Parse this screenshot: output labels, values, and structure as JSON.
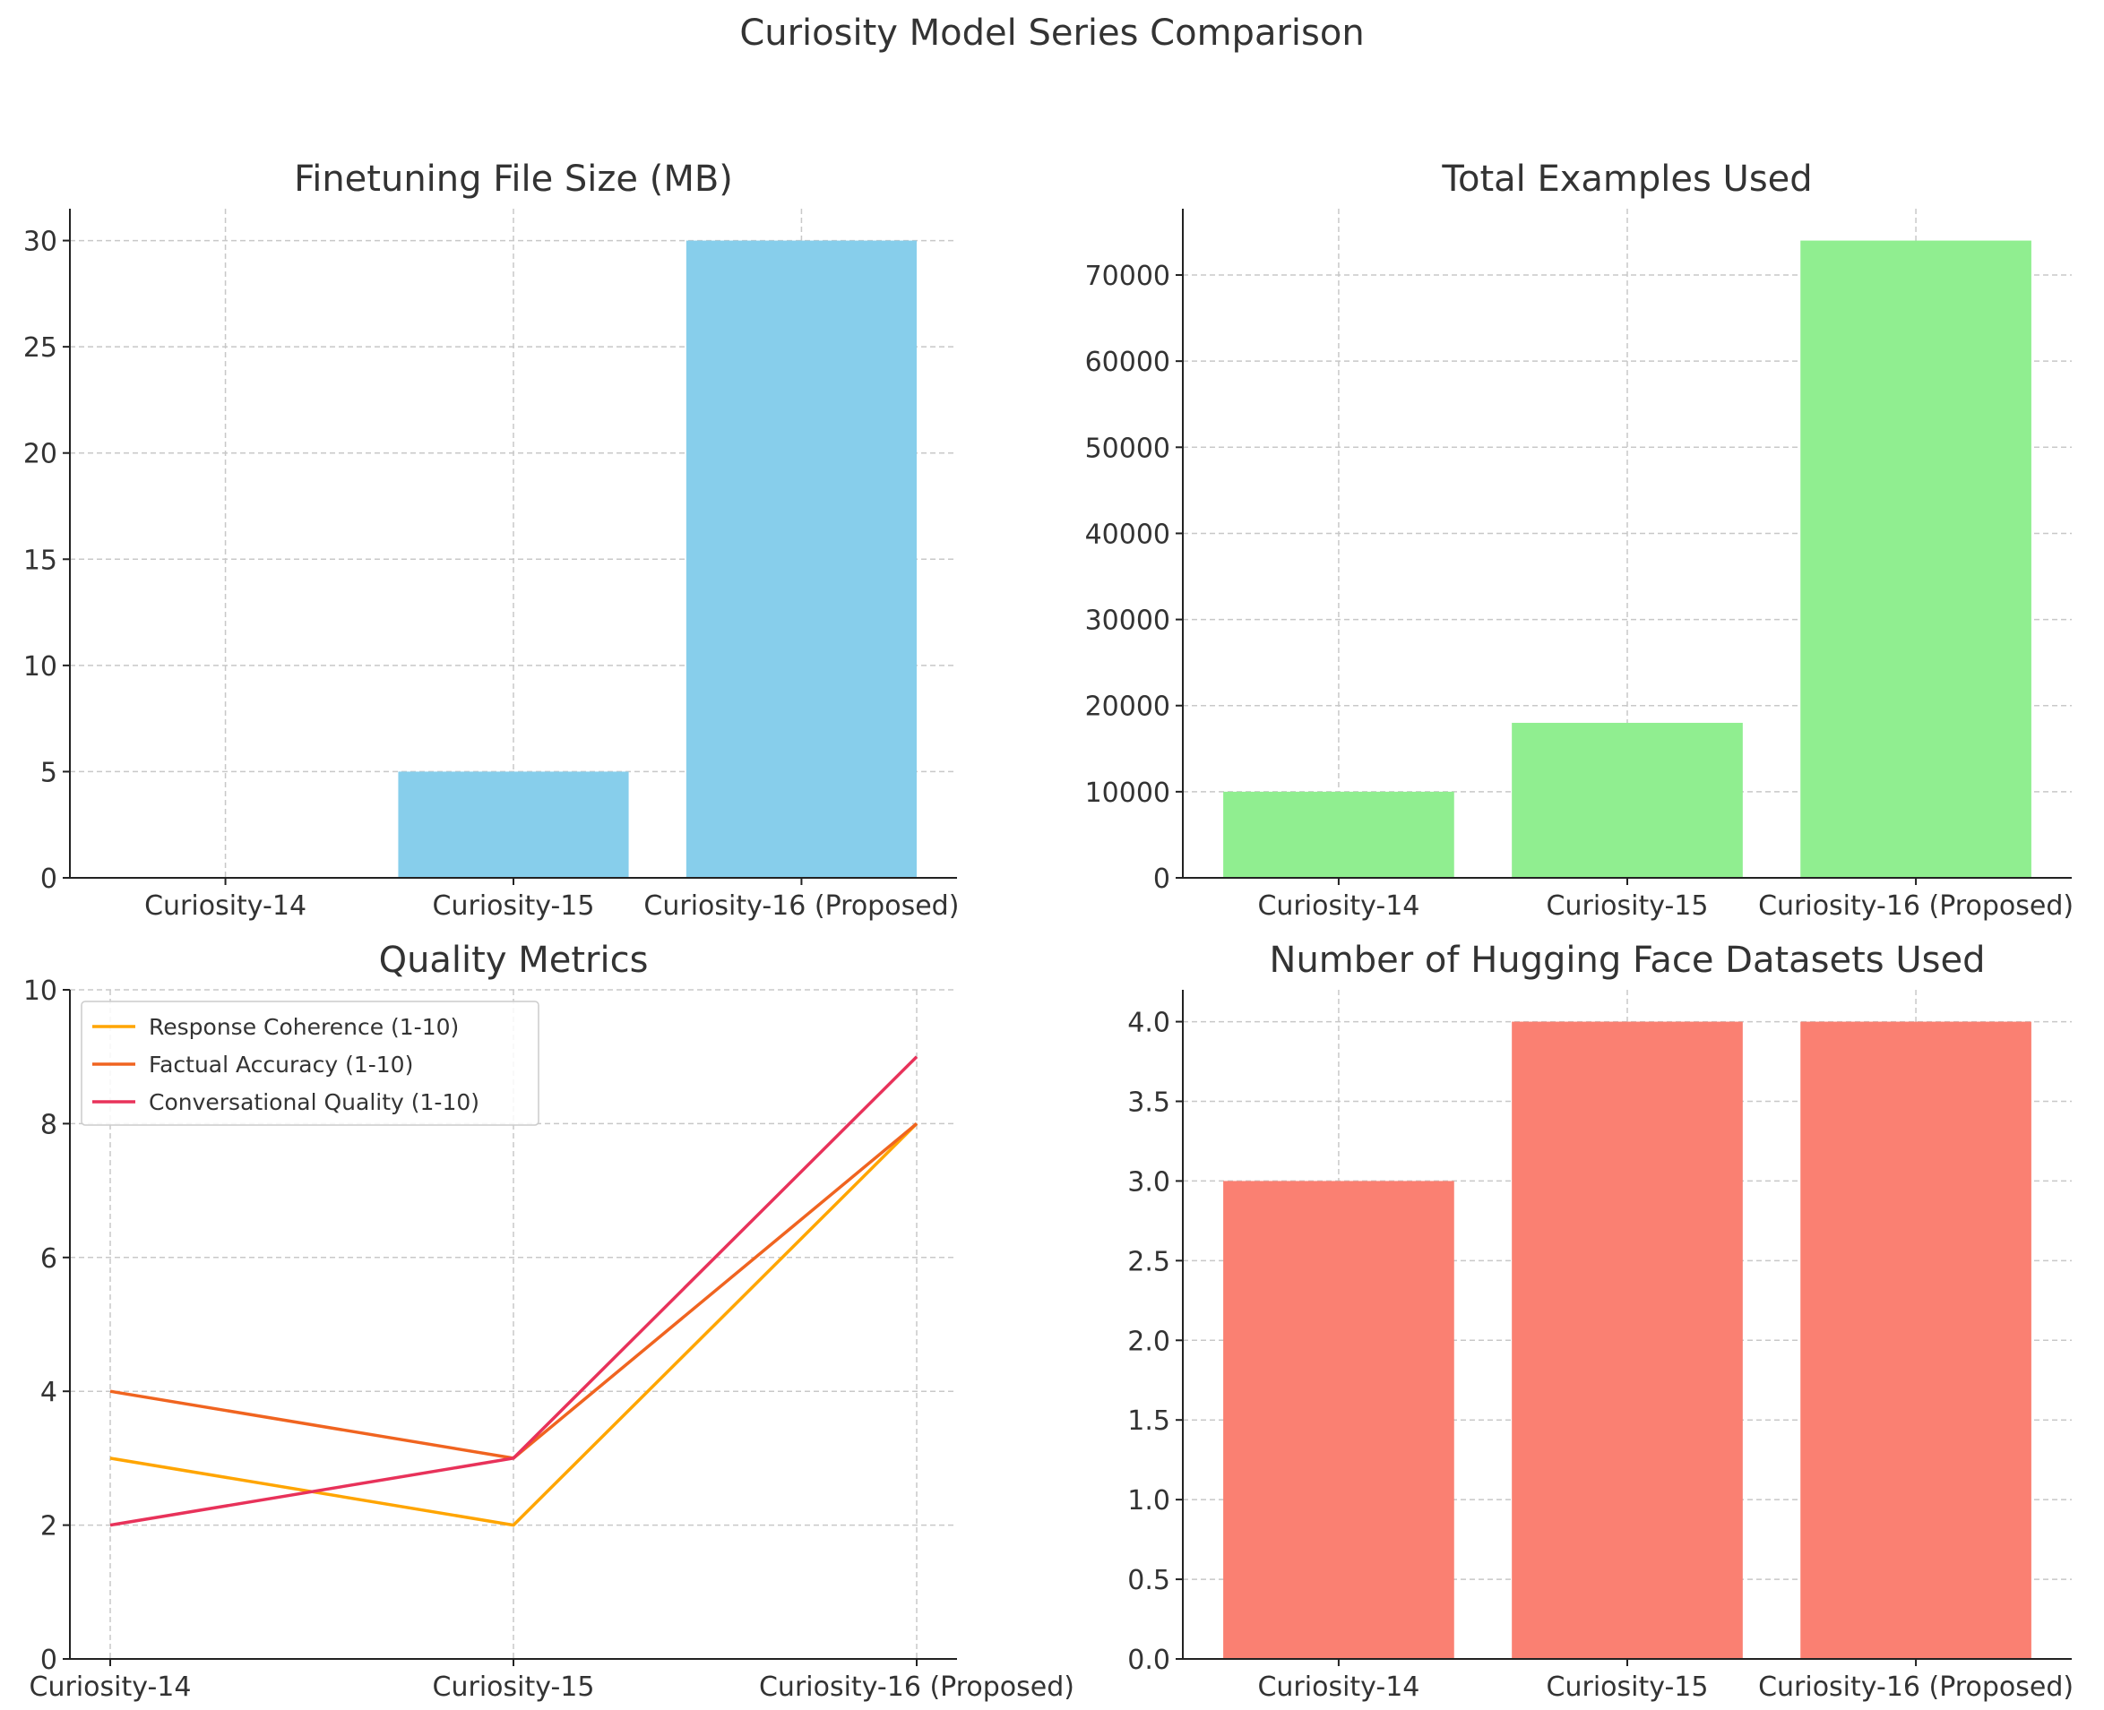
{
  "figure": {
    "title": "Curiosity Model Series Comparison"
  },
  "chart_data": [
    {
      "id": "file_size",
      "type": "bar",
      "title": "Finetuning File Size (MB)",
      "categories": [
        "Curiosity-14",
        "Curiosity-15",
        "Curiosity-16 (Proposed)"
      ],
      "values": [
        0,
        5,
        30
      ],
      "ylim": [
        0,
        31.5
      ],
      "yticks": [
        0,
        5,
        10,
        15,
        20,
        25,
        30
      ],
      "color": "#87ceeb",
      "grid": true
    },
    {
      "id": "examples",
      "type": "bar",
      "title": "Total Examples Used",
      "categories": [
        "Curiosity-14",
        "Curiosity-15",
        "Curiosity-16 (Proposed)"
      ],
      "values": [
        10000,
        18000,
        74000
      ],
      "ylim": [
        0,
        77700
      ],
      "yticks": [
        0,
        10000,
        20000,
        30000,
        40000,
        50000,
        60000,
        70000
      ],
      "color": "#90ee90",
      "grid": true
    },
    {
      "id": "quality",
      "type": "line",
      "title": "Quality Metrics",
      "categories": [
        "Curiosity-14",
        "Curiosity-15",
        "Curiosity-16 (Proposed)"
      ],
      "series": [
        {
          "name": "Response Coherence (1-10)",
          "values": [
            3,
            2,
            8
          ],
          "color": "#ffa500"
        },
        {
          "name": "Factual Accuracy (1-10)",
          "values": [
            4,
            3,
            8
          ],
          "color": "#f06420"
        },
        {
          "name": "Conversational Quality (1-10)",
          "values": [
            2,
            3,
            9
          ],
          "color": "#e8325a"
        }
      ],
      "ylim": [
        0,
        10
      ],
      "yticks": [
        0,
        2,
        4,
        6,
        8,
        10
      ],
      "legend": "top-left",
      "grid": true
    },
    {
      "id": "datasets",
      "type": "bar",
      "title": "Number of Hugging Face Datasets Used",
      "categories": [
        "Curiosity-14",
        "Curiosity-15",
        "Curiosity-16 (Proposed)"
      ],
      "values": [
        3,
        4,
        4
      ],
      "ylim": [
        0,
        4.2
      ],
      "yticks": [
        "0.0",
        "0.5",
        "1.0",
        "1.5",
        "2.0",
        "2.5",
        "3.0",
        "3.5",
        "4.0"
      ],
      "color": "#fa8072",
      "grid": true
    }
  ]
}
